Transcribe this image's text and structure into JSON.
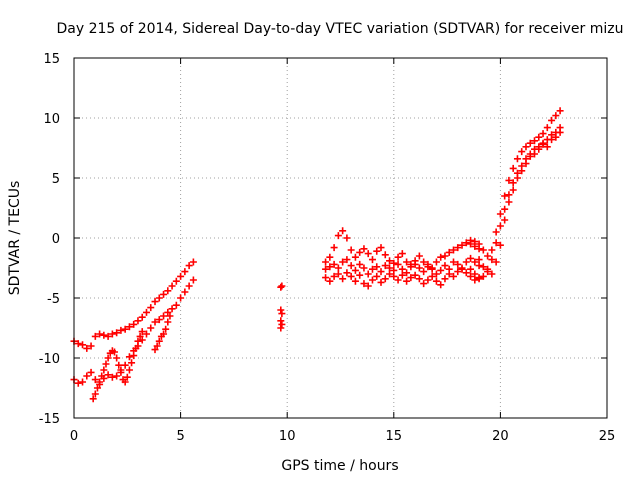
{
  "chart_data": {
    "type": "scatter",
    "title": "Day 215 of 2014, Sidereal Day-to-day VTEC variation (SDTVAR) for receiver mizu",
    "xlabel": "GPS time / hours",
    "ylabel": "SDTVAR / TECUs",
    "xlim": [
      0,
      25
    ],
    "ylim": [
      -15,
      15
    ],
    "xticks": [
      "0",
      "5",
      "10",
      "15",
      "20",
      "25"
    ],
    "yticks": [
      "-15",
      "-10",
      "-5",
      "0",
      "5",
      "10",
      "15"
    ],
    "grid": true,
    "marker": "plus",
    "color": "#ff0000",
    "series": [
      {
        "name": "segment 1 upper",
        "x": [
          0.0,
          0.2,
          0.4,
          0.6,
          0.8,
          1.0,
          1.2,
          1.4,
          1.6,
          1.8,
          2.0,
          2.2,
          2.4,
          2.6,
          2.8,
          3.0,
          3.2,
          3.4,
          3.6,
          3.8,
          4.0,
          4.2,
          4.4,
          4.6,
          4.8,
          5.0,
          5.2,
          5.4,
          5.6
        ],
        "y": [
          -8.6,
          -8.8,
          -8.9,
          -9.2,
          -9.0,
          -8.2,
          -8.0,
          -8.1,
          -8.2,
          -8.0,
          -7.9,
          -7.7,
          -7.6,
          -7.4,
          -7.2,
          -6.9,
          -6.6,
          -6.2,
          -5.8,
          -5.3,
          -5.0,
          -4.7,
          -4.4,
          -4.0,
          -3.6,
          -3.2,
          -2.8,
          -2.3,
          -2.0
        ]
      },
      {
        "name": "segment 1 lower",
        "x": [
          0.0,
          0.2,
          0.4,
          0.6,
          0.8,
          1.0,
          1.2,
          1.4,
          1.6,
          1.8,
          2.0,
          2.2,
          2.4,
          2.6,
          2.8,
          3.0,
          3.2,
          3.4,
          3.6,
          3.8,
          4.0,
          4.2,
          4.4,
          4.6,
          4.8,
          5.0,
          5.2,
          5.4,
          5.6
        ],
        "y": [
          -11.8,
          -12.1,
          -12.0,
          -11.5,
          -11.2,
          -11.8,
          -12.2,
          -11.7,
          -11.4,
          -11.6,
          -11.5,
          -11.0,
          -10.6,
          -9.9,
          -9.4,
          -9.0,
          -8.5,
          -8.0,
          -7.5,
          -7.0,
          -6.8,
          -6.5,
          -6.2,
          -5.9,
          -5.6,
          -5.0,
          -4.5,
          -4.0,
          -3.5
        ]
      },
      {
        "name": "segment 1 bottom loop",
        "x": [
          0.9,
          1.0,
          1.1,
          1.2,
          1.3,
          1.4,
          1.5,
          1.6,
          1.7,
          1.8,
          1.9,
          2.0,
          2.1,
          2.2,
          2.3,
          2.4,
          2.5,
          2.6,
          2.7,
          2.8,
          2.9,
          3.0,
          3.1,
          3.2
        ],
        "y": [
          -13.4,
          -13.0,
          -12.5,
          -12.0,
          -11.5,
          -11.0,
          -10.5,
          -10.0,
          -9.6,
          -9.4,
          -9.5,
          -10.0,
          -10.6,
          -11.2,
          -11.8,
          -12.0,
          -11.6,
          -11.0,
          -10.4,
          -9.8,
          -9.2,
          -8.6,
          -8.2,
          -7.8
        ]
      },
      {
        "name": "segment 1 spur",
        "x": [
          3.8,
          3.9,
          4.0,
          4.1,
          4.2,
          4.3,
          4.4,
          4.5
        ],
        "y": [
          -9.3,
          -9.0,
          -8.6,
          -8.2,
          -8.0,
          -7.6,
          -7.0,
          -6.5
        ]
      },
      {
        "name": "segment 2",
        "x": [
          9.7,
          9.75,
          9.7,
          9.75,
          9.7,
          9.75,
          9.7
        ],
        "y": [
          -4.1,
          -4.0,
          -6.0,
          -6.3,
          -6.9,
          -7.2,
          -7.5
        ]
      },
      {
        "name": "segment 3 upper",
        "x": [
          11.8,
          12.0,
          12.2,
          12.4,
          12.6,
          12.8,
          13.0,
          13.2,
          13.4,
          13.6,
          13.8,
          14.0,
          14.2,
          14.4,
          14.6,
          14.8,
          15.0,
          15.2,
          15.4,
          15.6,
          15.8,
          16.0,
          16.2,
          16.4,
          16.6,
          16.8,
          17.0,
          17.2,
          17.4,
          17.6,
          17.8,
          18.0,
          18.2,
          18.4,
          18.6,
          18.8,
          19.0
        ],
        "y": [
          -2.0,
          -1.6,
          -0.8,
          0.2,
          0.6,
          0.0,
          -1.0,
          -1.6,
          -1.2,
          -0.9,
          -1.3,
          -1.8,
          -1.1,
          -0.8,
          -1.4,
          -1.9,
          -2.1,
          -1.6,
          -1.3,
          -2.0,
          -2.2,
          -1.9,
          -1.5,
          -2.0,
          -2.2,
          -2.5,
          -2.0,
          -1.6,
          -1.5,
          -1.2,
          -1.0,
          -0.8,
          -0.6,
          -0.4,
          -0.5,
          -0.7,
          -0.9
        ]
      },
      {
        "name": "segment 3 middle",
        "x": [
          11.8,
          12.0,
          12.2,
          12.4,
          12.6,
          12.8,
          13.0,
          13.2,
          13.4,
          13.6,
          13.8,
          14.0,
          14.2,
          14.4,
          14.6,
          14.8,
          15.0,
          15.2,
          15.4,
          15.6,
          15.8,
          16.0,
          16.2,
          16.4,
          16.6,
          16.8,
          17.0,
          17.2,
          17.4,
          17.6,
          17.8,
          18.0,
          18.2,
          18.4,
          18.6,
          18.8,
          19.0
        ],
        "y": [
          -2.6,
          -2.4,
          -2.2,
          -2.5,
          -2.0,
          -1.8,
          -2.3,
          -2.7,
          -2.2,
          -2.5,
          -3.0,
          -2.6,
          -2.4,
          -2.8,
          -2.3,
          -2.5,
          -2.7,
          -2.2,
          -2.6,
          -2.9,
          -2.4,
          -2.2,
          -2.5,
          -2.8,
          -2.4,
          -2.6,
          -3.0,
          -2.7,
          -2.3,
          -2.6,
          -2.0,
          -2.2,
          -2.5,
          -2.0,
          -1.7,
          -2.0,
          -2.3
        ]
      },
      {
        "name": "segment 3 lower",
        "x": [
          11.8,
          12.0,
          12.2,
          12.4,
          12.6,
          12.8,
          13.0,
          13.2,
          13.4,
          13.6,
          13.8,
          14.0,
          14.2,
          14.4,
          14.6,
          14.8,
          15.0,
          15.2,
          15.4,
          15.6,
          15.8,
          16.0,
          16.2,
          16.4,
          16.6,
          16.8,
          17.0,
          17.2,
          17.4,
          17.6,
          17.8,
          18.0,
          18.2,
          18.4,
          18.6,
          18.8,
          19.0
        ],
        "y": [
          -3.3,
          -3.6,
          -3.2,
          -3.0,
          -3.4,
          -2.9,
          -3.2,
          -3.6,
          -3.1,
          -3.8,
          -4.0,
          -3.5,
          -3.2,
          -3.7,
          -3.4,
          -3.0,
          -3.2,
          -3.5,
          -3.1,
          -3.6,
          -3.3,
          -3.1,
          -3.4,
          -3.8,
          -3.5,
          -3.2,
          -3.6,
          -3.9,
          -3.4,
          -3.0,
          -3.2,
          -2.8,
          -2.6,
          -2.9,
          -3.2,
          -3.5,
          -3.3
        ]
      },
      {
        "name": "segment 3 tail",
        "x": [
          18.6,
          18.8,
          19.0,
          19.2,
          19.4,
          19.6,
          19.8,
          20.0,
          20.2,
          20.4,
          20.6,
          20.8,
          21.0,
          21.2,
          21.4,
          21.6,
          21.8,
          22.0,
          22.2,
          22.4,
          22.6,
          22.8
        ],
        "y": [
          -0.2,
          -0.3,
          -0.5,
          -1.0,
          -1.5,
          -1.0,
          0.5,
          2.0,
          3.5,
          4.8,
          5.8,
          6.6,
          7.2,
          7.6,
          7.9,
          8.1,
          8.4,
          8.7,
          9.2,
          9.8,
          10.2,
          10.6
        ]
      },
      {
        "name": "segment 3 tail lower",
        "x": [
          18.6,
          18.8,
          19.0,
          19.2,
          19.4,
          19.6,
          19.8,
          20.0,
          20.2,
          20.4,
          20.6,
          20.8,
          21.0,
          21.2,
          21.4,
          21.6,
          21.8,
          22.0,
          22.2,
          22.4,
          22.6,
          22.8
        ],
        "y": [
          -2.6,
          -3.0,
          -3.4,
          -3.2,
          -2.6,
          -1.8,
          -0.4,
          1.0,
          2.4,
          3.6,
          4.6,
          5.4,
          6.0,
          6.6,
          7.0,
          7.4,
          7.6,
          7.9,
          8.2,
          8.6,
          8.8,
          9.2
        ]
      },
      {
        "name": "segment 3 tail loop",
        "x": [
          19.0,
          19.2,
          19.4,
          19.6,
          19.8,
          20.0,
          20.2,
          20.4,
          20.6,
          20.8,
          21.0,
          21.2,
          21.4,
          21.6,
          21.8,
          22.0,
          22.2,
          22.4,
          22.6,
          22.8
        ],
        "y": [
          -1.8,
          -2.4,
          -2.8,
          -3.0,
          -2.0,
          -0.6,
          1.5,
          3.0,
          4.0,
          5.0,
          5.6,
          6.2,
          6.8,
          7.0,
          7.4,
          7.8,
          7.6,
          8.2,
          8.4,
          8.8
        ]
      }
    ]
  }
}
